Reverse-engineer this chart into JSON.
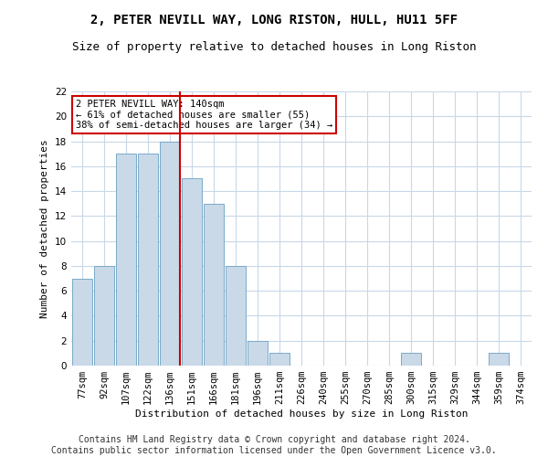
{
  "title1": "2, PETER NEVILL WAY, LONG RISTON, HULL, HU11 5FF",
  "title2": "Size of property relative to detached houses in Long Riston",
  "xlabel": "Distribution of detached houses by size in Long Riston",
  "ylabel": "Number of detached properties",
  "categories": [
    "77sqm",
    "92sqm",
    "107sqm",
    "122sqm",
    "136sqm",
    "151sqm",
    "166sqm",
    "181sqm",
    "196sqm",
    "211sqm",
    "226sqm",
    "240sqm",
    "255sqm",
    "270sqm",
    "285sqm",
    "300sqm",
    "315sqm",
    "329sqm",
    "344sqm",
    "359sqm",
    "374sqm"
  ],
  "values": [
    7,
    8,
    17,
    17,
    18,
    15,
    13,
    8,
    2,
    1,
    0,
    0,
    0,
    0,
    0,
    1,
    0,
    0,
    0,
    1,
    0
  ],
  "bar_color": "#c9d9e8",
  "bar_edge_color": "#7aaac8",
  "grid_color": "#c8d8e8",
  "vline_x_index": 4,
  "vline_color": "#cc0000",
  "annotation_text": "2 PETER NEVILL WAY: 140sqm\n← 61% of detached houses are smaller (55)\n38% of semi-detached houses are larger (34) →",
  "annotation_box_color": "#ffffff",
  "annotation_box_edge": "#cc0000",
  "footer": "Contains HM Land Registry data © Crown copyright and database right 2024.\nContains public sector information licensed under the Open Government Licence v3.0.",
  "ylim": [
    0,
    22
  ],
  "yticks": [
    0,
    2,
    4,
    6,
    8,
    10,
    12,
    14,
    16,
    18,
    20,
    22
  ],
  "title1_fontsize": 10,
  "title2_fontsize": 9,
  "xlabel_fontsize": 8,
  "ylabel_fontsize": 8,
  "tick_fontsize": 7.5,
  "annotation_fontsize": 7.5,
  "footer_fontsize": 7
}
